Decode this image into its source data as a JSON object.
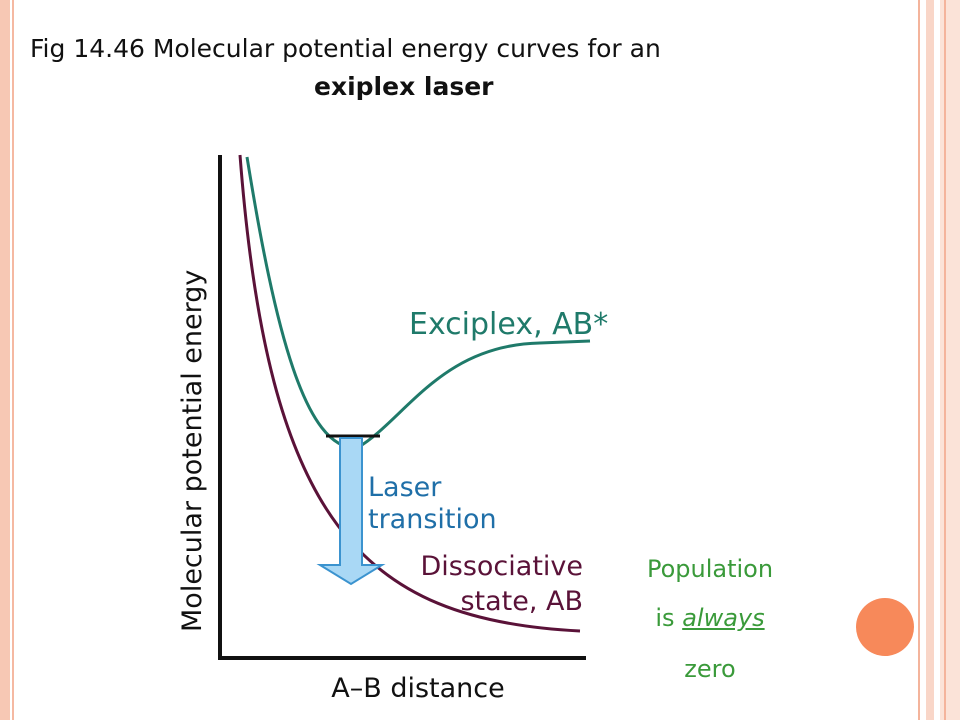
{
  "slide": {
    "title_line1": "Fig 14.46  Molecular potential energy curves for an",
    "title_line2": "exiplex laser",
    "note": {
      "line1": "Population",
      "line2_prefix": "is ",
      "line2_emphasis": "always",
      "line3": "zero"
    }
  },
  "diagram": {
    "y_axis_label": "Molecular potential energy",
    "x_axis_label": "A–B distance",
    "excited_curve_label": "Exciplex, AB*",
    "laser_label_line1": "Laser",
    "laser_label_line2": "transition",
    "ground_curve_label_line1": "Dissociative",
    "ground_curve_label_line2": "state, AB"
  },
  "colors": {
    "excited_curve": "#1f7a6a",
    "ground_curve": "#5a1238",
    "arrow_fill": "#a9d8f5",
    "arrow_stroke": "#3b93cf",
    "laser_text": "#1f6fa8",
    "note_text": "#3a9a3a",
    "border": "#f7c8b4",
    "accent_dot": "#f7895a"
  }
}
